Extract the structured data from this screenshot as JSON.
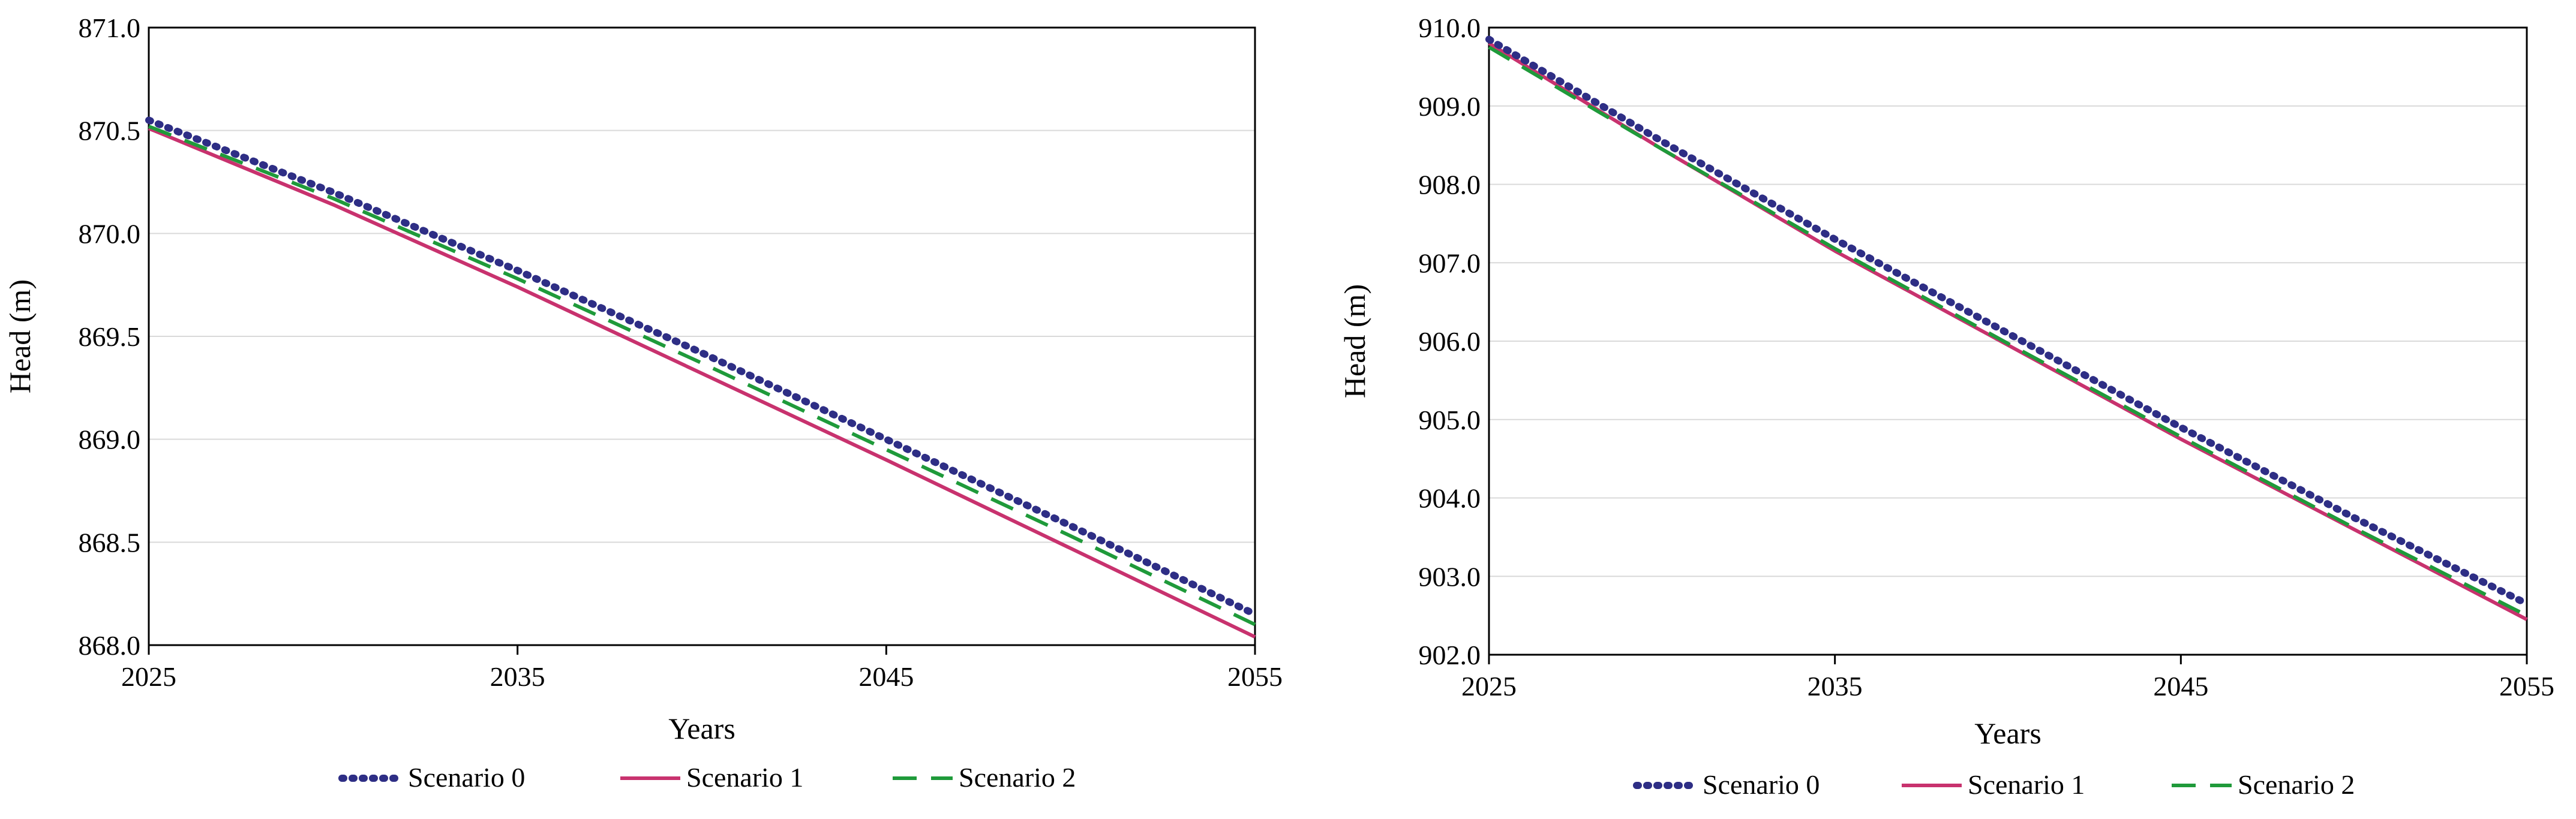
{
  "colors": {
    "scenario0": "#2e2e85",
    "scenario1": "#c8326e",
    "scenario2": "#1f9a3a",
    "grid": "#d9d9d9",
    "axis": "#000000"
  },
  "chart_data": [
    {
      "type": "line",
      "xlabel": "Years",
      "ylabel": "Head (m)",
      "xlim": [
        2025,
        2055
      ],
      "ylim": [
        868.0,
        871.0
      ],
      "xticks": [
        "2025",
        "2035",
        "2045",
        "2055"
      ],
      "yticks": [
        "868.0",
        "868.5",
        "869.0",
        "869.5",
        "870.0",
        "870.5",
        "871.0"
      ],
      "grid": "horizontal",
      "legend": "bottom",
      "x": [
        2025,
        2030,
        2035,
        2040,
        2045,
        2050,
        2055
      ],
      "series": [
        {
          "name": "Scenario 0",
          "style": "dotted",
          "values": [
            870.55,
            870.2,
            869.82,
            869.42,
            869.0,
            868.58,
            868.15
          ]
        },
        {
          "name": "Scenario 1",
          "style": "solid",
          "values": [
            870.51,
            870.14,
            869.74,
            869.32,
            868.9,
            868.47,
            868.04
          ]
        },
        {
          "name": "Scenario 2",
          "style": "dashed",
          "values": [
            870.52,
            870.17,
            869.78,
            869.37,
            868.95,
            868.53,
            868.1
          ]
        }
      ]
    },
    {
      "type": "line",
      "xlabel": "Years",
      "ylabel": "Head (m)",
      "xlim": [
        2025,
        2055
      ],
      "ylim": [
        902.0,
        910.0
      ],
      "xticks": [
        "2025",
        "2035",
        "2045",
        "2055"
      ],
      "yticks": [
        "902.0",
        "903.0",
        "904.0",
        "905.0",
        "906.0",
        "907.0",
        "908.0",
        "909.0",
        "910.0"
      ],
      "grid": "horizontal",
      "legend": "bottom",
      "x": [
        2025,
        2030,
        2035,
        2040,
        2045,
        2050,
        2055
      ],
      "series": [
        {
          "name": "Scenario 0",
          "style": "dotted",
          "values": [
            909.85,
            908.55,
            907.3,
            906.1,
            904.9,
            903.75,
            902.65
          ]
        },
        {
          "name": "Scenario 1",
          "style": "solid",
          "values": [
            909.8,
            908.45,
            907.15,
            905.95,
            904.75,
            903.6,
            902.45
          ]
        },
        {
          "name": "Scenario 2",
          "style": "dashed",
          "values": [
            909.75,
            908.45,
            907.18,
            905.97,
            904.78,
            903.62,
            902.5
          ]
        }
      ]
    }
  ]
}
